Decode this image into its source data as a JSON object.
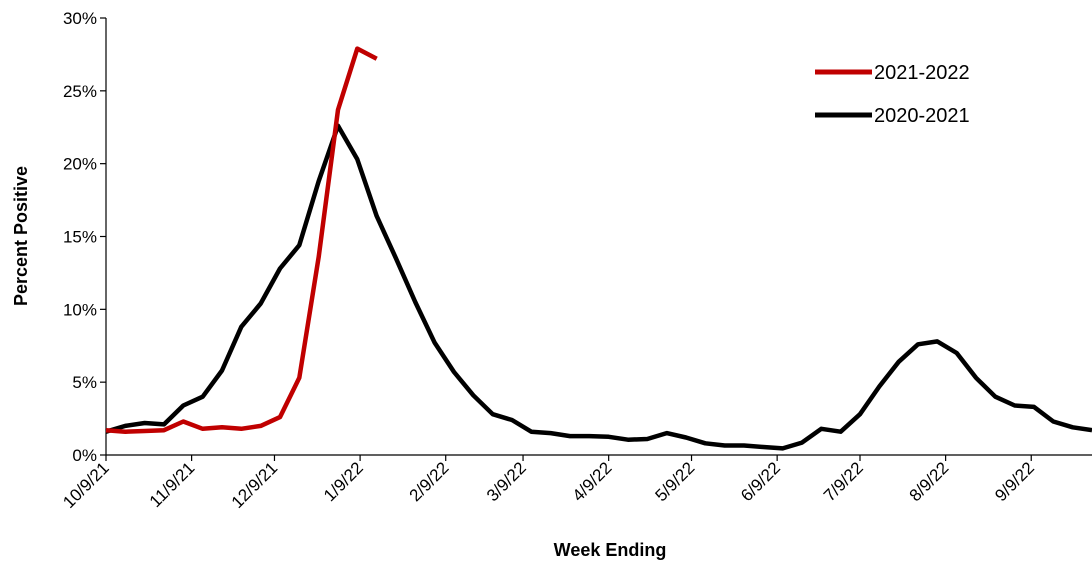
{
  "chart_data": {
    "type": "line",
    "title": "",
    "xlabel": "Week Ending",
    "ylabel": "Percent Positive",
    "ylim": [
      0,
      30
    ],
    "xlim": [
      "2021-10-09",
      "2022-10-01"
    ],
    "y_ticks": [
      0,
      5,
      10,
      15,
      20,
      25,
      30
    ],
    "y_tick_labels": [
      "0%",
      "5%",
      "10%",
      "15%",
      "20%",
      "25%",
      "30%"
    ],
    "x_ticks": [
      "2021-10-09",
      "2021-11-09",
      "2021-12-09",
      "2022-01-09",
      "2022-02-09",
      "2022-03-09",
      "2022-04-09",
      "2022-05-09",
      "2022-06-09",
      "2022-07-09",
      "2022-08-09",
      "2022-09-09"
    ],
    "x_tick_labels": [
      "10/9/21",
      "11/9/21",
      "12/9/21",
      "1/9/22",
      "2/9/22",
      "3/9/22",
      "4/9/22",
      "5/9/22",
      "6/9/22",
      "7/9/22",
      "8/9/22",
      "9/9/22"
    ],
    "grid": false,
    "legend_position": "top-right",
    "series": [
      {
        "name": "2021-2022",
        "color": "#C00000",
        "x": [
          "2021-10-09",
          "2021-10-16",
          "2021-10-23",
          "2021-10-30",
          "2021-11-06",
          "2021-11-13",
          "2021-11-20",
          "2021-11-27",
          "2021-12-04",
          "2021-12-11",
          "2021-12-18",
          "2021-12-25",
          "2022-01-01",
          "2022-01-08",
          "2022-01-15"
        ],
        "values": [
          1.7,
          1.6,
          1.65,
          1.7,
          2.3,
          1.8,
          1.9,
          1.8,
          2.0,
          2.6,
          5.3,
          13.6,
          23.7,
          27.9,
          27.2
        ]
      },
      {
        "name": "2020-2021",
        "color": "#000000",
        "x": [
          "2021-10-09",
          "2021-10-16",
          "2021-10-23",
          "2021-10-30",
          "2021-11-06",
          "2021-11-13",
          "2021-11-20",
          "2021-11-27",
          "2021-12-04",
          "2021-12-11",
          "2021-12-18",
          "2021-12-25",
          "2022-01-01",
          "2022-01-08",
          "2022-01-15",
          "2022-01-22",
          "2022-01-29",
          "2022-02-05",
          "2022-02-12",
          "2022-02-19",
          "2022-02-26",
          "2022-03-05",
          "2022-03-12",
          "2022-03-19",
          "2022-03-26",
          "2022-04-02",
          "2022-04-09",
          "2022-04-16",
          "2022-04-23",
          "2022-04-30",
          "2022-05-07",
          "2022-05-14",
          "2022-05-21",
          "2022-05-28",
          "2022-06-04",
          "2022-06-11",
          "2022-06-18",
          "2022-06-25",
          "2022-07-02",
          "2022-07-09",
          "2022-07-16",
          "2022-07-23",
          "2022-07-30",
          "2022-08-06",
          "2022-08-13",
          "2022-08-20",
          "2022-08-27",
          "2022-09-03",
          "2022-09-10",
          "2022-09-17",
          "2022-09-24",
          "2022-10-01"
        ],
        "values": [
          1.6,
          2.0,
          2.2,
          2.1,
          3.4,
          4.0,
          5.8,
          8.8,
          10.4,
          12.8,
          14.4,
          18.8,
          22.6,
          20.3,
          16.4,
          13.5,
          10.5,
          7.7,
          5.7,
          4.1,
          2.8,
          2.4,
          1.6,
          1.5,
          1.3,
          1.3,
          1.25,
          1.05,
          1.1,
          1.5,
          1.2,
          0.8,
          0.65,
          0.65,
          0.55,
          0.45,
          0.85,
          1.8,
          1.6,
          2.8,
          4.7,
          6.4,
          7.6,
          7.8,
          7.0,
          5.3,
          4.0,
          3.4,
          3.3,
          2.3,
          1.9,
          1.7
        ]
      }
    ]
  }
}
